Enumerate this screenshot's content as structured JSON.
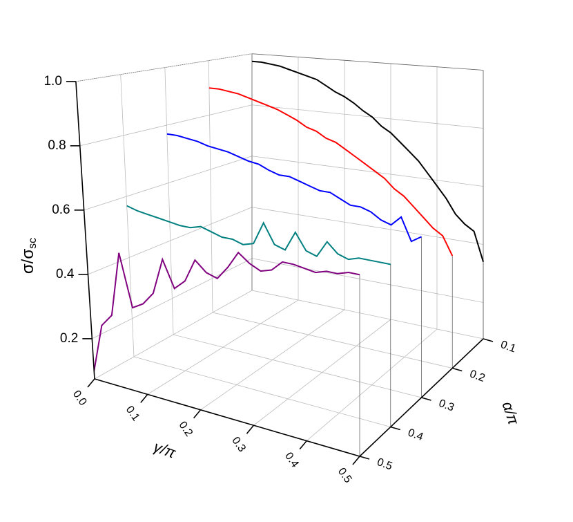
{
  "chart_data": {
    "type": "waterfall3d",
    "x_label": "γ/π",
    "y_label": "σ/σ",
    "y_label_sub": "sc",
    "z_label": "α/π",
    "x": [
      0,
      0.02,
      0.04,
      0.06,
      0.08,
      0.1,
      0.12,
      0.14,
      0.16,
      0.18,
      0.2,
      0.22,
      0.24,
      0.26,
      0.28,
      0.3,
      0.32,
      0.34,
      0.36,
      0.38,
      0.4,
      0.42,
      0.44,
      0.46,
      0.48,
      0.5
    ],
    "series": [
      {
        "color": "#000000",
        "z": 0.1,
        "values": [
          0.97,
          0.97,
          0.965,
          0.96,
          0.95,
          0.94,
          0.93,
          0.92,
          0.9,
          0.88,
          0.865,
          0.845,
          0.82,
          0.8,
          0.77,
          0.75,
          0.72,
          0.69,
          0.66,
          0.62,
          0.58,
          0.54,
          0.49,
          0.46,
          0.44,
          0.34
        ]
      },
      {
        "color": "#ff0000",
        "z": 0.2,
        "values": [
          0.9,
          0.9,
          0.895,
          0.89,
          0.88,
          0.87,
          0.86,
          0.85,
          0.835,
          0.82,
          0.8,
          0.79,
          0.77,
          0.76,
          0.74,
          0.72,
          0.7,
          0.68,
          0.66,
          0.63,
          0.61,
          0.58,
          0.55,
          0.52,
          0.5,
          0.44
        ]
      },
      {
        "color": "#0000ff",
        "z": 0.3,
        "values": [
          0.77,
          0.77,
          0.765,
          0.76,
          0.75,
          0.745,
          0.74,
          0.73,
          0.72,
          0.715,
          0.7,
          0.69,
          0.69,
          0.68,
          0.67,
          0.66,
          0.66,
          0.645,
          0.63,
          0.63,
          0.62,
          0.6,
          0.59,
          0.62,
          0.55,
          0.57
        ]
      },
      {
        "color": "#008080",
        "z": 0.4,
        "values": [
          0.57,
          0.56,
          0.555,
          0.55,
          0.545,
          0.54,
          0.54,
          0.55,
          0.54,
          0.53,
          0.53,
          0.52,
          0.53,
          0.6,
          0.54,
          0.53,
          0.59,
          0.54,
          0.53,
          0.58,
          0.55,
          0.54,
          0.55,
          0.55,
          0.55,
          0.55
        ]
      },
      {
        "color": "#800080",
        "z": 0.5,
        "values": [
          0.1,
          0.25,
          0.29,
          0.49,
          0.33,
          0.35,
          0.39,
          0.5,
          0.42,
          0.45,
          0.52,
          0.49,
          0.48,
          0.52,
          0.57,
          0.545,
          0.53,
          0.54,
          0.57,
          0.57,
          0.565,
          0.56,
          0.57,
          0.57,
          0.58,
          0.58
        ]
      }
    ],
    "xlim": [
      0,
      0.5
    ],
    "xticks": [
      {
        "value": 0,
        "label": "0.0"
      },
      0.1,
      0.2,
      0.3,
      0.4,
      0.5
    ],
    "ylim": [
      0.075,
      1
    ],
    "yticks": [
      0.2,
      0.4,
      0.6,
      0.8,
      {
        "value": 1,
        "label": "1.0"
      }
    ],
    "zlim": [
      0.1,
      0.5
    ],
    "zticks": [
      0.1,
      0.2,
      0.3,
      0.4,
      0.5
    ],
    "grid": true
  }
}
